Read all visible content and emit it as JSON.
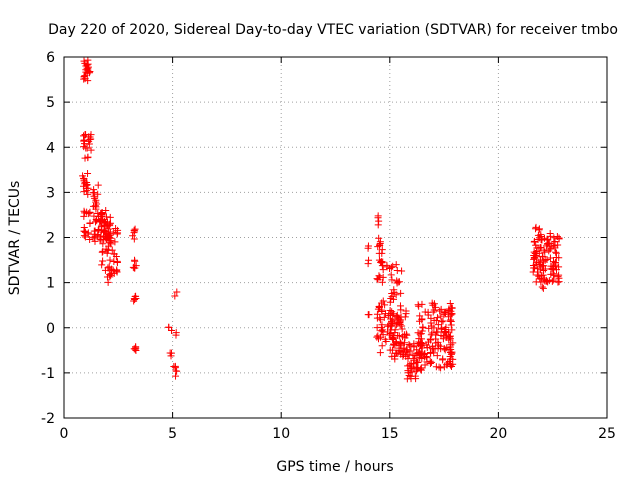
{
  "chart_data": {
    "type": "scatter",
    "title": "Day 220 of 2020, Sidereal Day-to-day VTEC variation (SDTVAR) for receiver tmbo",
    "xlabel": "GPS time / hours",
    "ylabel": "SDTVAR / TECUs",
    "xlim": [
      0,
      25
    ],
    "ylim": [
      -2,
      6
    ],
    "xticks": [
      0,
      5,
      10,
      15,
      20,
      25
    ],
    "yticks": [
      -2,
      -1,
      0,
      1,
      2,
      3,
      4,
      5,
      6
    ],
    "grid": true,
    "marker": "+",
    "color": "#ff0000",
    "series": [
      {
        "name": "SDTVAR",
        "clusters": [
          {
            "x": [
              0.9,
              1.2
            ],
            "y": [
              5.4,
              5.95
            ],
            "n": 22
          },
          {
            "x": [
              0.85,
              1.25
            ],
            "y": [
              3.75,
              4.3
            ],
            "n": 22
          },
          {
            "x": [
              0.85,
              1.15
            ],
            "y": [
              2.9,
              3.45
            ],
            "n": 16
          },
          {
            "x": [
              0.9,
              1.2
            ],
            "y": [
              1.85,
              2.6
            ],
            "n": 18
          },
          {
            "x": [
              1.3,
              1.6
            ],
            "y": [
              2.6,
              3.2
            ],
            "n": 14
          },
          {
            "x": [
              1.3,
              2.2
            ],
            "y": [
              1.9,
              2.6
            ],
            "n": 60
          },
          {
            "x": [
              1.7,
              2.5
            ],
            "y": [
              1.0,
              2.3
            ],
            "n": 55
          },
          {
            "x": [
              3.15,
              3.35
            ],
            "y": [
              1.95,
              2.2
            ],
            "n": 6
          },
          {
            "x": [
              3.15,
              3.35
            ],
            "y": [
              1.3,
              1.5
            ],
            "n": 6
          },
          {
            "x": [
              3.15,
              3.35
            ],
            "y": [
              0.55,
              0.7
            ],
            "n": 6
          },
          {
            "x": [
              3.15,
              3.35
            ],
            "y": [
              -0.58,
              -0.42
            ],
            "n": 6
          },
          {
            "x": [
              4.8,
              4.95
            ],
            "y": [
              -0.12,
              0.02
            ],
            "n": 3
          },
          {
            "x": [
              4.8,
              4.95
            ],
            "y": [
              -0.65,
              -0.52
            ],
            "n": 3
          },
          {
            "x": [
              5.05,
              5.2
            ],
            "y": [
              -1.15,
              -0.78
            ],
            "n": 6
          },
          {
            "x": [
              5.1,
              5.2
            ],
            "y": [
              -0.2,
              -0.1
            ],
            "n": 2
          },
          {
            "x": [
              5.1,
              5.2
            ],
            "y": [
              0.7,
              0.8
            ],
            "n": 2
          },
          {
            "x": [
              13.95,
              14.05
            ],
            "y": [
              1.75,
              1.85
            ],
            "n": 2
          },
          {
            "x": [
              13.95,
              14.05
            ],
            "y": [
              1.4,
              1.5
            ],
            "n": 2
          },
          {
            "x": [
              13.95,
              14.05
            ],
            "y": [
              0.25,
              0.35
            ],
            "n": 2
          },
          {
            "x": [
              14.4,
              14.55
            ],
            "y": [
              2.2,
              2.55
            ],
            "n": 4
          },
          {
            "x": [
              14.4,
              14.7
            ],
            "y": [
              1.0,
              2.0
            ],
            "n": 22
          },
          {
            "x": [
              14.4,
              14.8
            ],
            "y": [
              -0.6,
              0.6
            ],
            "n": 28
          },
          {
            "x": [
              14.8,
              15.6
            ],
            "y": [
              -0.4,
              1.4
            ],
            "n": 50
          },
          {
            "x": [
              15.0,
              15.8
            ],
            "y": [
              -0.7,
              0.4
            ],
            "n": 60
          },
          {
            "x": [
              15.8,
              16.5
            ],
            "y": [
              -1.15,
              -0.3
            ],
            "n": 55
          },
          {
            "x": [
              16.3,
              17.9
            ],
            "y": [
              -0.9,
              0.55
            ],
            "n": 130
          },
          {
            "x": [
              17.5,
              17.9
            ],
            "y": [
              -0.6,
              0.4
            ],
            "n": 20
          },
          {
            "x": [
              21.6,
              22.1
            ],
            "y": [
              0.85,
              2.25
            ],
            "n": 55
          },
          {
            "x": [
              22.0,
              22.8
            ],
            "y": [
              1.0,
              2.1
            ],
            "n": 70
          }
        ]
      }
    ]
  }
}
